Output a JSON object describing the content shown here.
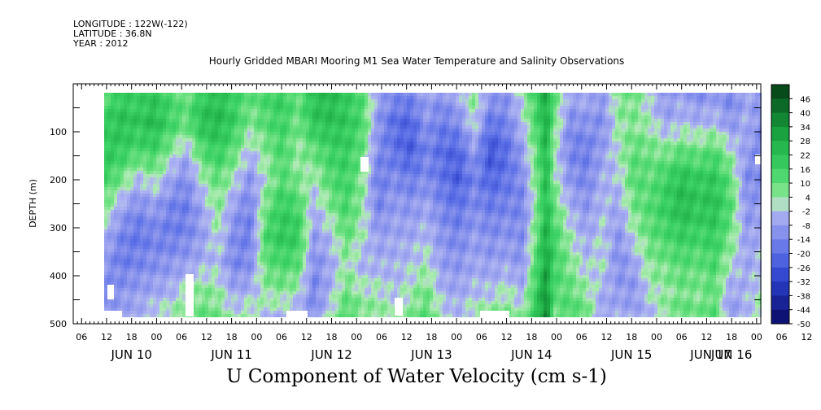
{
  "header": {
    "longitude": "LONGITUDE : 122W(-122)",
    "latitude": "LATITUDE : 36.8N",
    "year": "YEAR : 2012"
  },
  "chart_data": {
    "type": "heatmap",
    "title": "Hourly Gridded MBARI Mooring M1 Sea Water Temperature and Salinity Observations",
    "xlabel": "U Component of Water Velocity (cm s-1)",
    "ylabel": "DEPTH (m)",
    "ylim": [
      500,
      0
    ],
    "y_ticks": [
      100,
      200,
      300,
      400,
      500
    ],
    "x_hour_ticks": [
      "06",
      "12",
      "18",
      "00",
      "06",
      "12",
      "18",
      "00",
      "06",
      "12",
      "18",
      "00",
      "06",
      "12",
      "18",
      "00",
      "06",
      "12",
      "18",
      "00",
      "06",
      "12",
      "18",
      "00",
      "06",
      "12",
      "18",
      "00",
      "06",
      "12",
      "18",
      "00"
    ],
    "x_day_labels": [
      "JUN 10",
      "JUN 11",
      "JUN 12",
      "JUN 13",
      "JUN 14",
      "JUN 15",
      "JUN 16",
      "JUN 17"
    ],
    "colorbar_levels": [
      46,
      40,
      34,
      28,
      22,
      16,
      10,
      4,
      -2,
      -8,
      -14,
      -20,
      -26,
      -32,
      -38,
      -44,
      -50
    ],
    "colorbar_range": [
      -50,
      52
    ],
    "colors": {
      "negative": "#a4aaf0",
      "positive": "#3ed86a",
      "strong_positive": "#0d6a26",
      "strong_negative": "#1a1aa0"
    },
    "field_columns": [
      {
        "t": 0,
        "v": [
          12,
          18,
          20,
          15,
          6,
          -4,
          -10,
          -12,
          -8
        ]
      },
      {
        "t": 4,
        "v": [
          18,
          22,
          18,
          8,
          -6,
          -14,
          -16,
          -10,
          -6
        ]
      },
      {
        "t": 8,
        "v": [
          16,
          20,
          14,
          -2,
          -12,
          -18,
          -14,
          -8,
          -4
        ]
      },
      {
        "t": 12,
        "v": [
          20,
          24,
          16,
          4,
          -8,
          -14,
          -12,
          -6,
          2
        ]
      },
      {
        "t": 16,
        "v": [
          14,
          16,
          6,
          -6,
          -14,
          -16,
          -10,
          -4,
          4
        ]
      },
      {
        "t": 20,
        "v": [
          8,
          10,
          -4,
          -12,
          -16,
          -14,
          -8,
          2,
          8
        ]
      },
      {
        "t": 24,
        "v": [
          18,
          22,
          12,
          2,
          -6,
          -8,
          -4,
          6,
          10
        ]
      },
      {
        "t": 28,
        "v": [
          22,
          24,
          18,
          10,
          6,
          2,
          -2,
          4,
          8
        ]
      },
      {
        "t": 32,
        "v": [
          16,
          18,
          10,
          2,
          -8,
          -12,
          -14,
          -6,
          2
        ]
      },
      {
        "t": 36,
        "v": [
          10,
          6,
          -2,
          -10,
          -14,
          -16,
          -12,
          -4,
          6
        ]
      },
      {
        "t": 40,
        "v": [
          14,
          12,
          6,
          2,
          8,
          14,
          10,
          4,
          -2
        ]
      },
      {
        "t": 44,
        "v": [
          18,
          16,
          14,
          12,
          18,
          20,
          14,
          6,
          -4
        ]
      },
      {
        "t": 48,
        "v": [
          10,
          8,
          4,
          6,
          14,
          18,
          12,
          2,
          -8
        ]
      },
      {
        "t": 52,
        "v": [
          22,
          20,
          10,
          2,
          -4,
          -8,
          -12,
          -14,
          -10
        ]
      },
      {
        "t": 56,
        "v": [
          24,
          22,
          16,
          12,
          6,
          -2,
          -6,
          -4,
          2
        ]
      },
      {
        "t": 60,
        "v": [
          18,
          20,
          18,
          16,
          14,
          10,
          4,
          8,
          14
        ]
      },
      {
        "t": 64,
        "v": [
          12,
          14,
          10,
          6,
          4,
          2,
          -4,
          2,
          8
        ]
      },
      {
        "t": 68,
        "v": [
          -6,
          -10,
          -12,
          -16,
          -14,
          -8,
          -4,
          2,
          6
        ]
      },
      {
        "t": 72,
        "v": [
          -12,
          -20,
          -18,
          -12,
          -8,
          -6,
          -4,
          -2,
          4
        ]
      },
      {
        "t": 76,
        "v": [
          -14,
          -22,
          -24,
          -16,
          -10,
          -6,
          -2,
          2,
          6
        ]
      },
      {
        "t": 80,
        "v": [
          -6,
          -10,
          -14,
          -12,
          -6,
          -2,
          2,
          8,
          12
        ]
      },
      {
        "t": 84,
        "v": [
          -10,
          -16,
          -20,
          -18,
          -14,
          -10,
          -8,
          -4,
          2
        ]
      },
      {
        "t": 88,
        "v": [
          -4,
          -12,
          -22,
          -24,
          -18,
          -14,
          -10,
          -6,
          -2
        ]
      },
      {
        "t": 92,
        "v": [
          6,
          2,
          -8,
          -14,
          -12,
          -8,
          -6,
          -2,
          4
        ]
      },
      {
        "t": 96,
        "v": [
          -8,
          -18,
          -26,
          -22,
          -16,
          -12,
          -8,
          -2,
          6
        ]
      },
      {
        "t": 100,
        "v": [
          -10,
          -14,
          -20,
          -18,
          -14,
          -10,
          -6,
          2,
          8
        ]
      },
      {
        "t": 104,
        "v": [
          2,
          -2,
          -8,
          -12,
          -14,
          -12,
          -10,
          -4,
          4
        ]
      },
      {
        "t": 108,
        "v": [
          18,
          16,
          12,
          10,
          8,
          12,
          16,
          20,
          24
        ]
      },
      {
        "t": 110,
        "v": [
          30,
          28,
          26,
          24,
          24,
          28,
          30,
          34,
          40
        ]
      },
      {
        "t": 112,
        "v": [
          10,
          8,
          2,
          4,
          10,
          14,
          16,
          12,
          8
        ]
      },
      {
        "t": 116,
        "v": [
          -6,
          -12,
          -14,
          -10,
          -4,
          2,
          6,
          10,
          14
        ]
      },
      {
        "t": 120,
        "v": [
          -4,
          -10,
          -16,
          -14,
          -10,
          -6,
          -2,
          4,
          10
        ]
      },
      {
        "t": 124,
        "v": [
          -8,
          -12,
          -8,
          -4,
          -2,
          0,
          2,
          -4,
          -8
        ]
      },
      {
        "t": 128,
        "v": [
          6,
          4,
          2,
          -2,
          -6,
          -10,
          -12,
          -8,
          -4
        ]
      },
      {
        "t": 132,
        "v": [
          8,
          6,
          10,
          12,
          8,
          2,
          -6,
          -10,
          -6
        ]
      },
      {
        "t": 136,
        "v": [
          -2,
          2,
          8,
          10,
          12,
          10,
          6,
          2,
          -4
        ]
      },
      {
        "t": 140,
        "v": [
          -10,
          -6,
          6,
          16,
          18,
          14,
          8,
          4,
          6
        ]
      },
      {
        "t": 144,
        "v": [
          -6,
          -2,
          10,
          22,
          24,
          18,
          12,
          8,
          10
        ]
      },
      {
        "t": 148,
        "v": [
          -12,
          -4,
          8,
          18,
          20,
          16,
          10,
          6,
          8
        ]
      },
      {
        "t": 152,
        "v": [
          -8,
          -2,
          12,
          20,
          22,
          18,
          14,
          10,
          12
        ]
      },
      {
        "t": 156,
        "v": [
          -14,
          -10,
          2,
          10,
          12,
          8,
          2,
          -6,
          -10
        ]
      },
      {
        "t": 160,
        "v": [
          -6,
          -4,
          -8,
          -12,
          -10,
          -8,
          -6,
          -4,
          -2
        ]
      },
      {
        "t": 164,
        "v": [
          -10,
          -12,
          -14,
          -12,
          -8,
          -4,
          -2,
          2,
          4
        ]
      }
    ]
  }
}
